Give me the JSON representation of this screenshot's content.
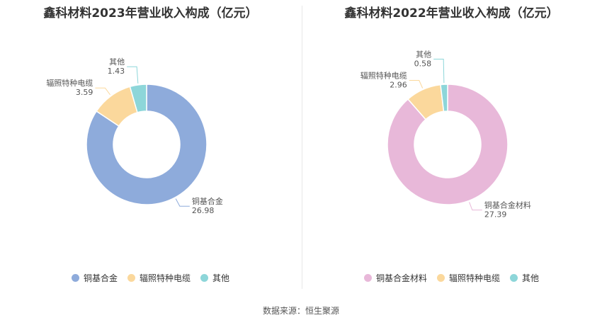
{
  "source_text": "数据来源：恒生聚源",
  "chart_data": [
    {
      "type": "pie",
      "title": "鑫科材料2023年营业收入构成（亿元）",
      "legend_position": "bottom",
      "slices": [
        {
          "name": "铜基合金",
          "value": 26.98,
          "value_label": "26.98",
          "color": "#8eabdb"
        },
        {
          "name": "辐照特种电缆",
          "value": 3.59,
          "value_label": "3.59",
          "color": "#fbd89c"
        },
        {
          "name": "其他",
          "value": 1.43,
          "value_label": "1.43",
          "color": "#8dd6d9"
        }
      ]
    },
    {
      "type": "pie",
      "title": "鑫科材料2022年营业收入构成（亿元）",
      "legend_position": "bottom",
      "slices": [
        {
          "name": "铜基合金材料",
          "value": 27.39,
          "value_label": "27.39",
          "color": "#e8b8d9"
        },
        {
          "name": "辐照特种电缆",
          "value": 2.96,
          "value_label": "2.96",
          "color": "#fbd89c"
        },
        {
          "name": "其他",
          "value": 0.58,
          "value_label": "0.58",
          "color": "#8dd6d9"
        }
      ]
    }
  ]
}
